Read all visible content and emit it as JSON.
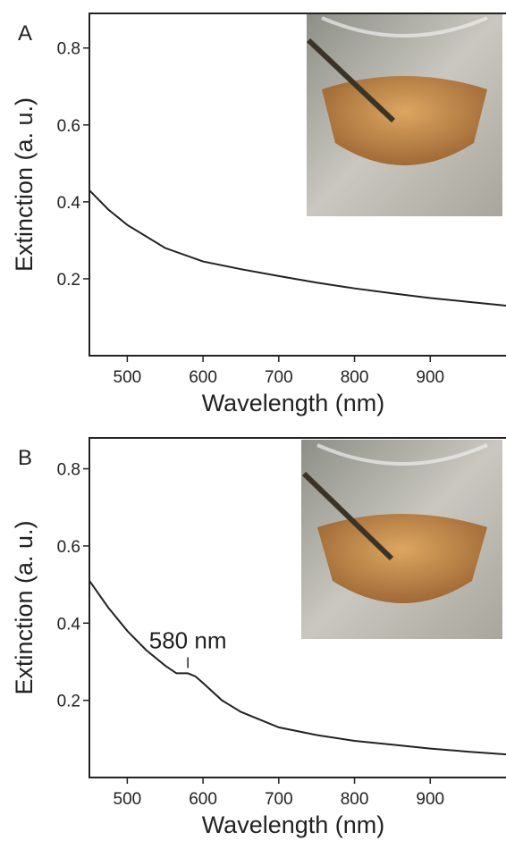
{
  "chart_data": [
    {
      "type": "line",
      "panel_label": "A",
      "x_label": "Wavelength (nm)",
      "y_label": "Extinction (a. u.)",
      "x": [
        450,
        475,
        500,
        550,
        600,
        650,
        700,
        750,
        800,
        850,
        900,
        950,
        1000
      ],
      "series": [
        {
          "color": "#222222",
          "values": [
            0.43,
            0.38,
            0.34,
            0.28,
            0.245,
            0.225,
            0.207,
            0.19,
            0.175,
            0.162,
            0.15,
            0.14,
            0.13
          ]
        }
      ],
      "xlim": [
        450,
        1000
      ],
      "xticks": [
        500,
        600,
        700,
        800,
        900
      ],
      "ylim": [
        0,
        0.89
      ],
      "yticks": [
        0.2,
        0.4,
        0.6,
        0.8
      ]
    },
    {
      "type": "line",
      "panel_label": "B",
      "x_label": "Wavelength (nm)",
      "y_label": "Extinction (a. u.)",
      "x": [
        450,
        475,
        500,
        525,
        550,
        565,
        580,
        590,
        600,
        625,
        650,
        700,
        750,
        800,
        850,
        900,
        950,
        1000
      ],
      "series": [
        {
          "color": "#222222",
          "values": [
            0.51,
            0.44,
            0.38,
            0.33,
            0.29,
            0.27,
            0.27,
            0.262,
            0.245,
            0.2,
            0.17,
            0.13,
            0.11,
            0.095,
            0.085,
            0.075,
            0.067,
            0.06
          ]
        }
      ],
      "annotation": {
        "text": "580 nm",
        "x": 580
      },
      "xlim": [
        450,
        1000
      ],
      "xticks": [
        500,
        600,
        700,
        800,
        900
      ],
      "ylim": [
        0,
        0.88
      ],
      "yticks": [
        0.2,
        0.4,
        0.6,
        0.8
      ]
    }
  ]
}
